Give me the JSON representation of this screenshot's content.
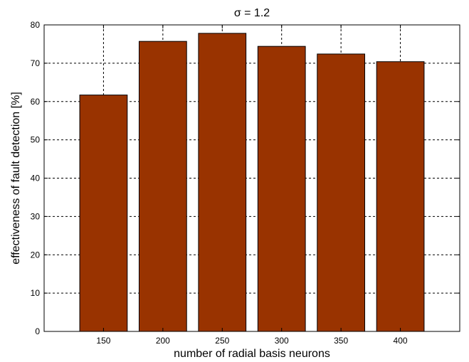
{
  "chart_data": {
    "type": "bar",
    "title": "σ = 1.2",
    "xlabel": "number of radial basis neurons",
    "ylabel": "effectiveness of fault detection [%]",
    "categories": [
      "150",
      "200",
      "250",
      "300",
      "350",
      "400"
    ],
    "values": [
      61.7,
      75.7,
      77.8,
      74.4,
      72.4,
      70.4
    ],
    "ylim": [
      0,
      80
    ],
    "yticks": [
      0,
      10,
      20,
      30,
      40,
      50,
      60,
      70,
      80
    ],
    "grid": true,
    "bar_color": "#993300"
  }
}
